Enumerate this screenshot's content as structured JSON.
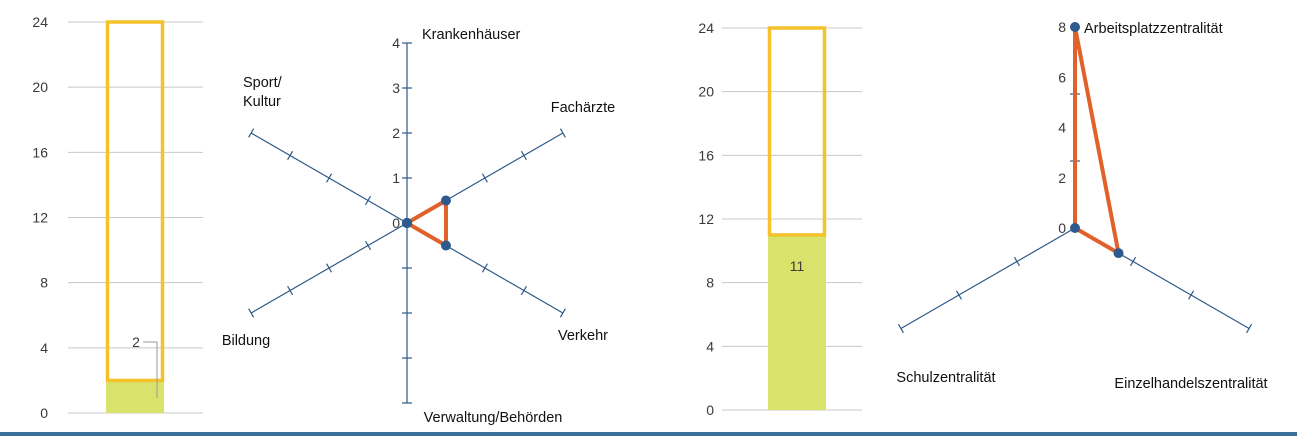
{
  "chart_data": [
    {
      "type": "bar",
      "ylim": [
        0,
        24
      ],
      "yticks": [
        0,
        4,
        8,
        12,
        16,
        20,
        24
      ],
      "value": 2,
      "max": 24,
      "value_label": "2",
      "colors": {
        "fill": "#d9e26b",
        "outline": "#f4c22a",
        "grid": "#c8c8c8"
      }
    },
    {
      "type": "radar",
      "axes": [
        "Krankenhäuser",
        "Fachärzte",
        "Verkehr",
        "Verwaltung/Behörden",
        "Bildung",
        "Sport/ Kultur"
      ],
      "scale_max": 4,
      "scale_labels": [
        0,
        1,
        2,
        3,
        4
      ],
      "values": [
        0,
        1,
        1,
        0,
        0,
        0
      ],
      "colors": {
        "axis": "#2f5a88",
        "series": "#e0622a",
        "point": "#2e5a8e"
      }
    },
    {
      "type": "bar",
      "ylim": [
        0,
        24
      ],
      "yticks": [
        0,
        4,
        8,
        12,
        16,
        20,
        24
      ],
      "value": 11,
      "max": 24,
      "value_label": "11",
      "colors": {
        "fill": "#d9e26b",
        "outline": "#f4c22a",
        "grid": "#c8c8c8"
      }
    },
    {
      "type": "radar",
      "axes": [
        "Arbeitsplatzzentralität",
        "Einzelhandelszentralität",
        "Schulzentralität"
      ],
      "scale_max": 8,
      "scale_labels": [
        0,
        2,
        4,
        6,
        8
      ],
      "values": [
        8,
        2,
        0
      ],
      "colors": {
        "axis": "#2f5a88",
        "series": "#e0622a",
        "point": "#2e5a8e"
      }
    }
  ]
}
